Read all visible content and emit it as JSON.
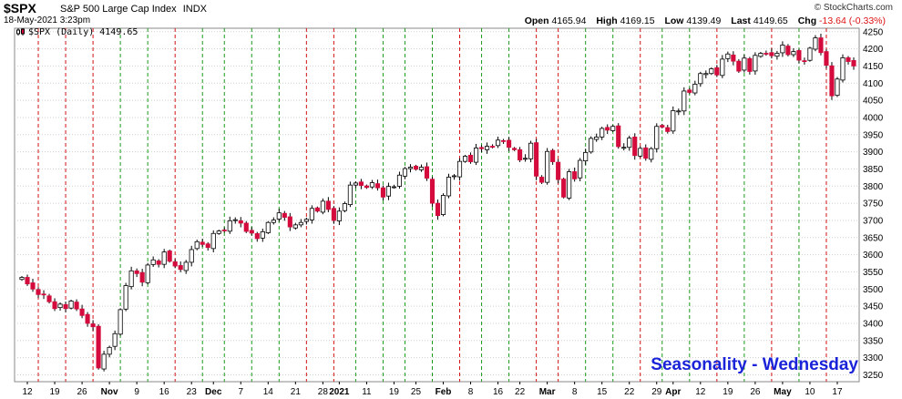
{
  "header": {
    "symbol": "$SPX",
    "name": "S&P 500 Large Cap Index",
    "exchange": "INDX",
    "date": "18-May-2021 3:23pm",
    "credit": "© StockCharts.com",
    "open_label": "Open",
    "open": "4165.94",
    "high_label": "High",
    "high": "4169.15",
    "low_label": "Low",
    "low": "4139.49",
    "last_label": "Last",
    "last": "4149.65",
    "chg_label": "Chg",
    "chg": "-13.64 (-0.33%)",
    "legend": "$SPX (Daily) 4149.65"
  },
  "watermark": "Seasonality - Wednesday",
  "colors": {
    "up": "#ffffff",
    "down": "#d40b3c",
    "outline": "#000000",
    "red_line": "#d11313",
    "green_line": "#1c9a1c",
    "grid": "#cfcfcf",
    "title": "#1a23d8"
  },
  "chart_data": {
    "type": "candlestick",
    "title": "$SPX (Daily) 4149.65",
    "ylim": [
      3230,
      4260
    ],
    "y_ticks": [
      3250,
      3300,
      3350,
      3400,
      3450,
      3500,
      3550,
      3600,
      3650,
      3700,
      3750,
      3800,
      3850,
      3900,
      3950,
      4000,
      4050,
      4100,
      4150,
      4200,
      4250
    ],
    "x_ticks": [
      {
        "label": "12",
        "bar": 1
      },
      {
        "label": "19",
        "bar": 6
      },
      {
        "label": "26",
        "bar": 11
      },
      {
        "label": "Nov",
        "bar": 16
      },
      {
        "label": "9",
        "bar": 21
      },
      {
        "label": "16",
        "bar": 26
      },
      {
        "label": "23",
        "bar": 31
      },
      {
        "label": "Dec",
        "bar": 35
      },
      {
        "label": "7",
        "bar": 40
      },
      {
        "label": "14",
        "bar": 45
      },
      {
        "label": "21",
        "bar": 50
      },
      {
        "label": "28",
        "bar": 55
      },
      {
        "label": "2021",
        "bar": 58
      },
      {
        "label": "11",
        "bar": 63
      },
      {
        "label": "19",
        "bar": 68
      },
      {
        "label": "25",
        "bar": 72
      },
      {
        "label": "Feb",
        "bar": 77
      },
      {
        "label": "8",
        "bar": 82
      },
      {
        "label": "16",
        "bar": 87
      },
      {
        "label": "22",
        "bar": 91
      },
      {
        "label": "Mar",
        "bar": 96
      },
      {
        "label": "8",
        "bar": 101
      },
      {
        "label": "15",
        "bar": 106
      },
      {
        "label": "22",
        "bar": 111
      },
      {
        "label": "29",
        "bar": 116
      },
      {
        "label": "Apr",
        "bar": 119
      },
      {
        "label": "12",
        "bar": 124
      },
      {
        "label": "19",
        "bar": 129
      },
      {
        "label": "26",
        "bar": 134
      },
      {
        "label": "May",
        "bar": 139
      },
      {
        "label": "10",
        "bar": 144
      },
      {
        "label": "17",
        "bar": 149
      }
    ],
    "wednesday_lines": [
      {
        "bar": 3,
        "color": "red"
      },
      {
        "bar": 8,
        "color": "red"
      },
      {
        "bar": 13,
        "color": "red"
      },
      {
        "bar": 18,
        "color": "green"
      },
      {
        "bar": 23,
        "color": "green"
      },
      {
        "bar": 28,
        "color": "red"
      },
      {
        "bar": 33,
        "color": "green"
      },
      {
        "bar": 37,
        "color": "green"
      },
      {
        "bar": 42,
        "color": "green"
      },
      {
        "bar": 47,
        "color": "green"
      },
      {
        "bar": 52,
        "color": "red"
      },
      {
        "bar": 57,
        "color": "red"
      },
      {
        "bar": 61,
        "color": "green"
      },
      {
        "bar": 66,
        "color": "green"
      },
      {
        "bar": 70,
        "color": "green"
      },
      {
        "bar": 75,
        "color": "green"
      },
      {
        "bar": 80,
        "color": "red"
      },
      {
        "bar": 84,
        "color": "green"
      },
      {
        "bar": 89,
        "color": "green"
      },
      {
        "bar": 94,
        "color": "red"
      },
      {
        "bar": 98,
        "color": "red"
      },
      {
        "bar": 103,
        "color": "green"
      },
      {
        "bar": 108,
        "color": "green"
      },
      {
        "bar": 113,
        "color": "red"
      },
      {
        "bar": 117,
        "color": "green"
      },
      {
        "bar": 122,
        "color": "green"
      },
      {
        "bar": 127,
        "color": "red"
      },
      {
        "bar": 132,
        "color": "green"
      },
      {
        "bar": 137,
        "color": "red"
      },
      {
        "bar": 142,
        "color": "green"
      },
      {
        "bar": 147,
        "color": "red"
      }
    ],
    "closes": [
      3534,
      3515,
      3500,
      3484,
      3483,
      3463,
      3443,
      3456,
      3443,
      3465,
      3442,
      3423,
      3400,
      3390,
      3270,
      3310,
      3330,
      3370,
      3440,
      3510,
      3553,
      3545,
      3520,
      3570,
      3585,
      3572,
      3608,
      3581,
      3567,
      3557,
      3578,
      3615,
      3638,
      3630,
      3621,
      3662,
      3669,
      3670,
      3699,
      3702,
      3692,
      3668,
      3663,
      3647,
      3667,
      3694,
      3701,
      3722,
      3709,
      3681,
      3687,
      3694,
      3703,
      3735,
      3727,
      3756,
      3732,
      3700,
      3727,
      3749,
      3803,
      3809,
      3802,
      3796,
      3810,
      3795,
      3768,
      3799,
      3798,
      3832,
      3851,
      3855,
      3849,
      3855,
      3823,
      3750,
      3714,
      3773,
      3826,
      3830,
      3872,
      3887,
      3871,
      3911,
      3909,
      3916,
      3915,
      3934,
      3932,
      3913,
      3906,
      3876,
      3881,
      3925,
      3829,
      3811,
      3901,
      3871,
      3819,
      3768,
      3842,
      3821,
      3875,
      3898,
      3939,
      3943,
      3968,
      3963,
      3974,
      3915,
      3913,
      3940,
      3889,
      3910,
      3881,
      3909,
      3974,
      3972,
      3959,
      4020,
      4019,
      4077,
      4073,
      4097,
      4128,
      4128,
      4142,
      4124,
      4170,
      4185,
      4164,
      4135,
      4173,
      4134,
      4181,
      4187,
      4186,
      4180,
      4187,
      4211,
      4183,
      4192,
      4167,
      4165,
      4202,
      4232,
      4189,
      4152,
      4063,
      4112,
      4174,
      4163,
      4150
    ]
  }
}
